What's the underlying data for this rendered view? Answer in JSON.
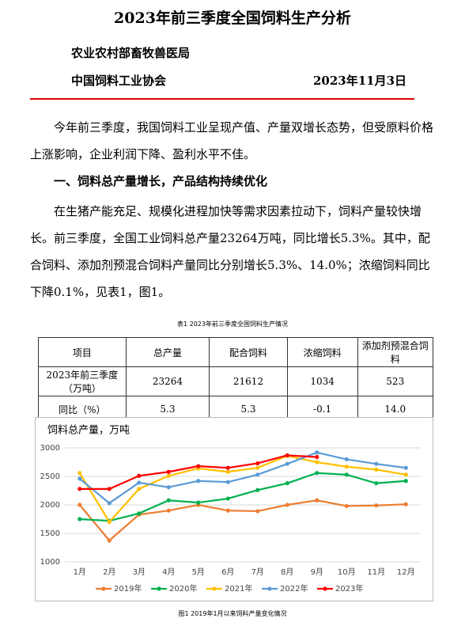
{
  "header": {
    "title": "2023年前三季度全国饲料生产分析",
    "agency": "农业农村部畜牧兽医局",
    "association": "中国饲料工业协会",
    "date": "2023年11月3日"
  },
  "paragraphs": [
    "今年前三季度，我国饲料工业呈现产值、产量双增长态势，但受原料价格上涨影响，企业利润下降、盈利水平不佳。",
    "一、饲料总产量增长，产品结构持续优化",
    "在生猪产能充足、规模化进程加快等需求因素拉动下，饲料产量较快增长。前三季度，全国工业饲料总产量23264万吨，同比增长5.3%。其中，配合饲料、添加剂预混合饲料产量同比分别增长5.3%、14.0%；浓缩饲料同比下降0.1%，见表1，图1。"
  ],
  "table": {
    "caption": "表1 2023年前三季度全国饲料生产情况",
    "header": [
      "项目",
      "总产量",
      "配合饲料",
      "浓缩饲料",
      "添加剂预混合饲料"
    ],
    "rows": [
      [
        "2023年前三季度（万吨）",
        "23264",
        "21612",
        "1034",
        "523"
      ],
      [
        "同比（%）",
        "5.3",
        "5.3",
        "-0.1",
        "14.0"
      ]
    ]
  },
  "chart_data": {
    "type": "line",
    "title": "饲料总产量，万吨",
    "caption": "图1 2019年1月以来饲料产量变化情况",
    "categories": [
      "1月",
      "2月",
      "3月",
      "4月",
      "5月",
      "6月",
      "7月",
      "8月",
      "9月",
      "10月",
      "11月",
      "12月"
    ],
    "ylim": [
      1000,
      3000
    ],
    "yticks": [
      1000,
      1500,
      2000,
      2500,
      3000
    ],
    "grid": true,
    "legend": "bottom",
    "series": [
      {
        "name": "2019年",
        "color": "#ed7d31",
        "values": [
          2000,
          1375,
          1830,
          1900,
          2000,
          1900,
          1890,
          2000,
          2080,
          1980,
          1990,
          2010
        ]
      },
      {
        "name": "2020年",
        "color": "#00b050",
        "values": [
          1750,
          1720,
          1850,
          2080,
          2040,
          2110,
          2260,
          2380,
          2560,
          2530,
          2380,
          2420
        ]
      },
      {
        "name": "2021年",
        "color": "#ffc000",
        "values": [
          2560,
          1700,
          2280,
          2510,
          2640,
          2580,
          2650,
          2860,
          2750,
          2670,
          2620,
          2530
        ]
      },
      {
        "name": "2022年",
        "color": "#5b9bd5",
        "values": [
          2460,
          2030,
          2390,
          2310,
          2420,
          2400,
          2530,
          2720,
          2920,
          2800,
          2720,
          2650
        ]
      },
      {
        "name": "2023年",
        "color": "#ff0000",
        "values": [
          2280,
          2280,
          2510,
          2580,
          2680,
          2650,
          2730,
          2870,
          2840,
          null,
          null,
          null
        ]
      }
    ]
  }
}
